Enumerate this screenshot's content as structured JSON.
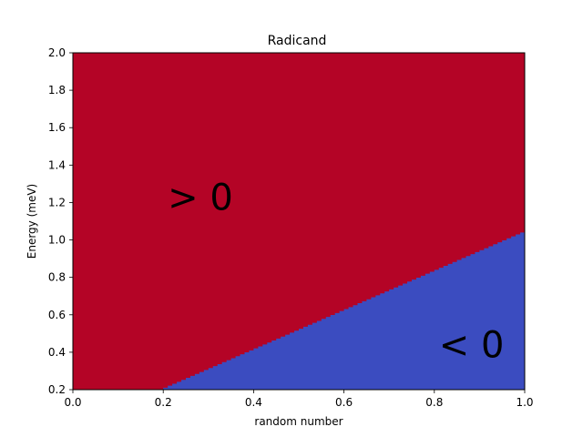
{
  "chart_data": {
    "type": "heatmap",
    "title": "Radicand",
    "xlabel": "random number",
    "ylabel": "Energy (meV)",
    "xlim": [
      0.0,
      1.0
    ],
    "ylim": [
      0.2,
      2.0
    ],
    "xticks": [
      "0.0",
      "0.2",
      "0.4",
      "0.6",
      "0.8",
      "1.0"
    ],
    "yticks": [
      "0.2",
      "0.4",
      "0.6",
      "0.8",
      "1.0",
      "1.2",
      "1.4",
      "1.6",
      "1.8",
      "2.0"
    ],
    "grid": false,
    "regions": [
      {
        "label": "> 0",
        "condition": "Energy above boundary",
        "color": "#b40426",
        "label_at": [
          0.21,
          1.23
        ]
      },
      {
        "label": "< 0",
        "condition": "Energy below boundary",
        "color": "#3b4cc0",
        "label_at": [
          0.81,
          0.44
        ]
      }
    ],
    "boundary": {
      "description": "radicand = 0 line (staircase, grid step 0.01)",
      "x": [
        0.2,
        1.0
      ],
      "energy": [
        0.2,
        1.04
      ]
    }
  }
}
